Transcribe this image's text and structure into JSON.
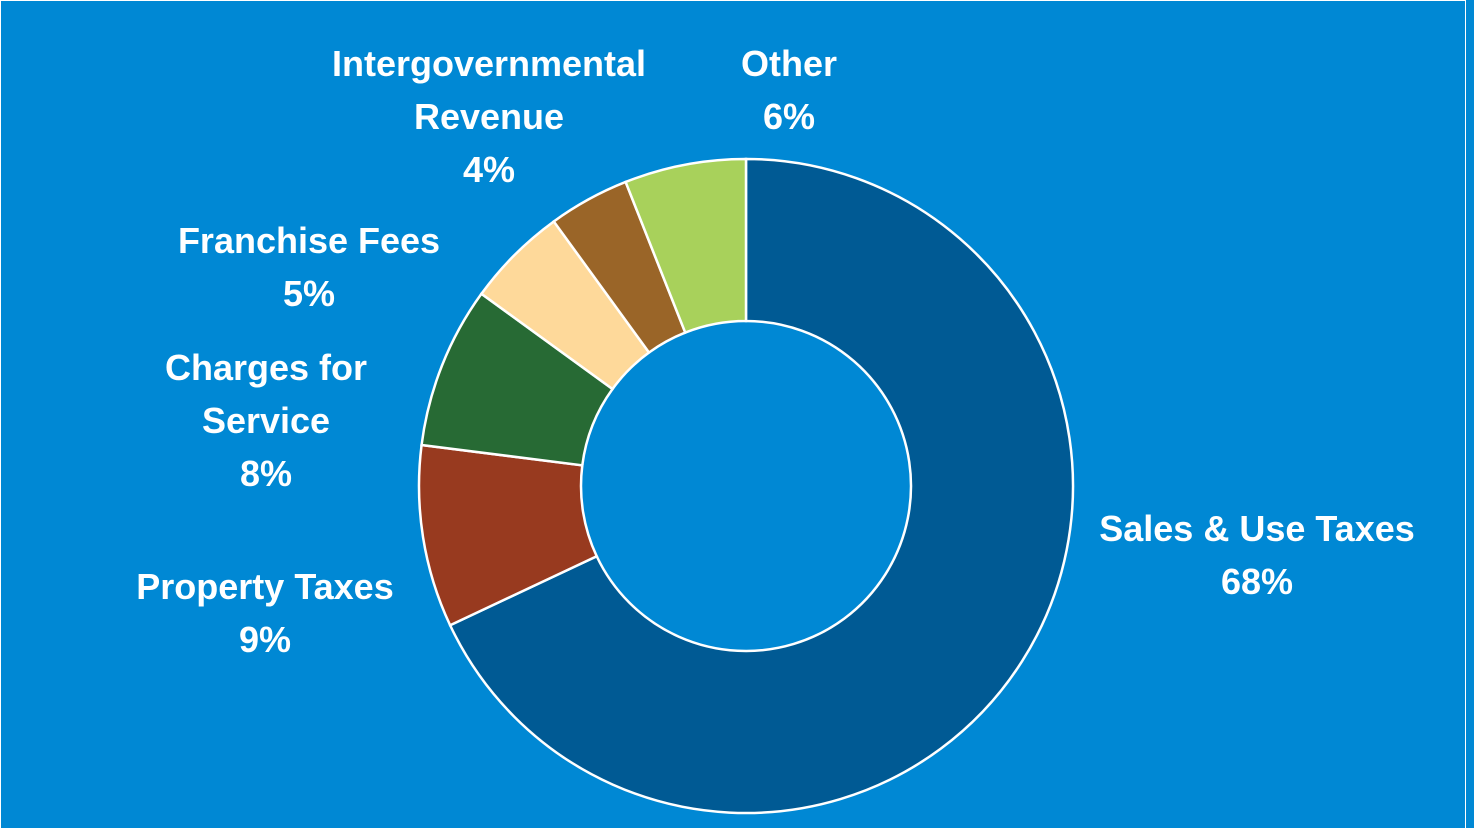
{
  "chart_data": {
    "type": "pie",
    "donut": true,
    "categories": [
      "Sales & Use Taxes",
      "Property Taxes",
      "Charges for Service",
      "Franchise Fees",
      "Intergovernmental Revenue",
      "Other"
    ],
    "values": [
      68,
      9,
      8,
      5,
      4,
      6
    ],
    "labels": [
      {
        "name_lines": [
          "Sales & Use Taxes"
        ],
        "pct": "68%"
      },
      {
        "name_lines": [
          "Property Taxes"
        ],
        "pct": "9%"
      },
      {
        "name_lines": [
          "Charges for",
          "Service"
        ],
        "pct": "8%"
      },
      {
        "name_lines": [
          "Franchise Fees"
        ],
        "pct": "5%"
      },
      {
        "name_lines": [
          "Intergovernmental",
          "Revenue"
        ],
        "pct": "4%"
      },
      {
        "name_lines": [
          "Other"
        ],
        "pct": "6%"
      }
    ],
    "colors": [
      "#005a94",
      "#983a1f",
      "#276a34",
      "#fed99a",
      "#9a6528",
      "#a8d15b"
    ],
    "background": "#0088d4",
    "legend": "none",
    "title": ""
  }
}
